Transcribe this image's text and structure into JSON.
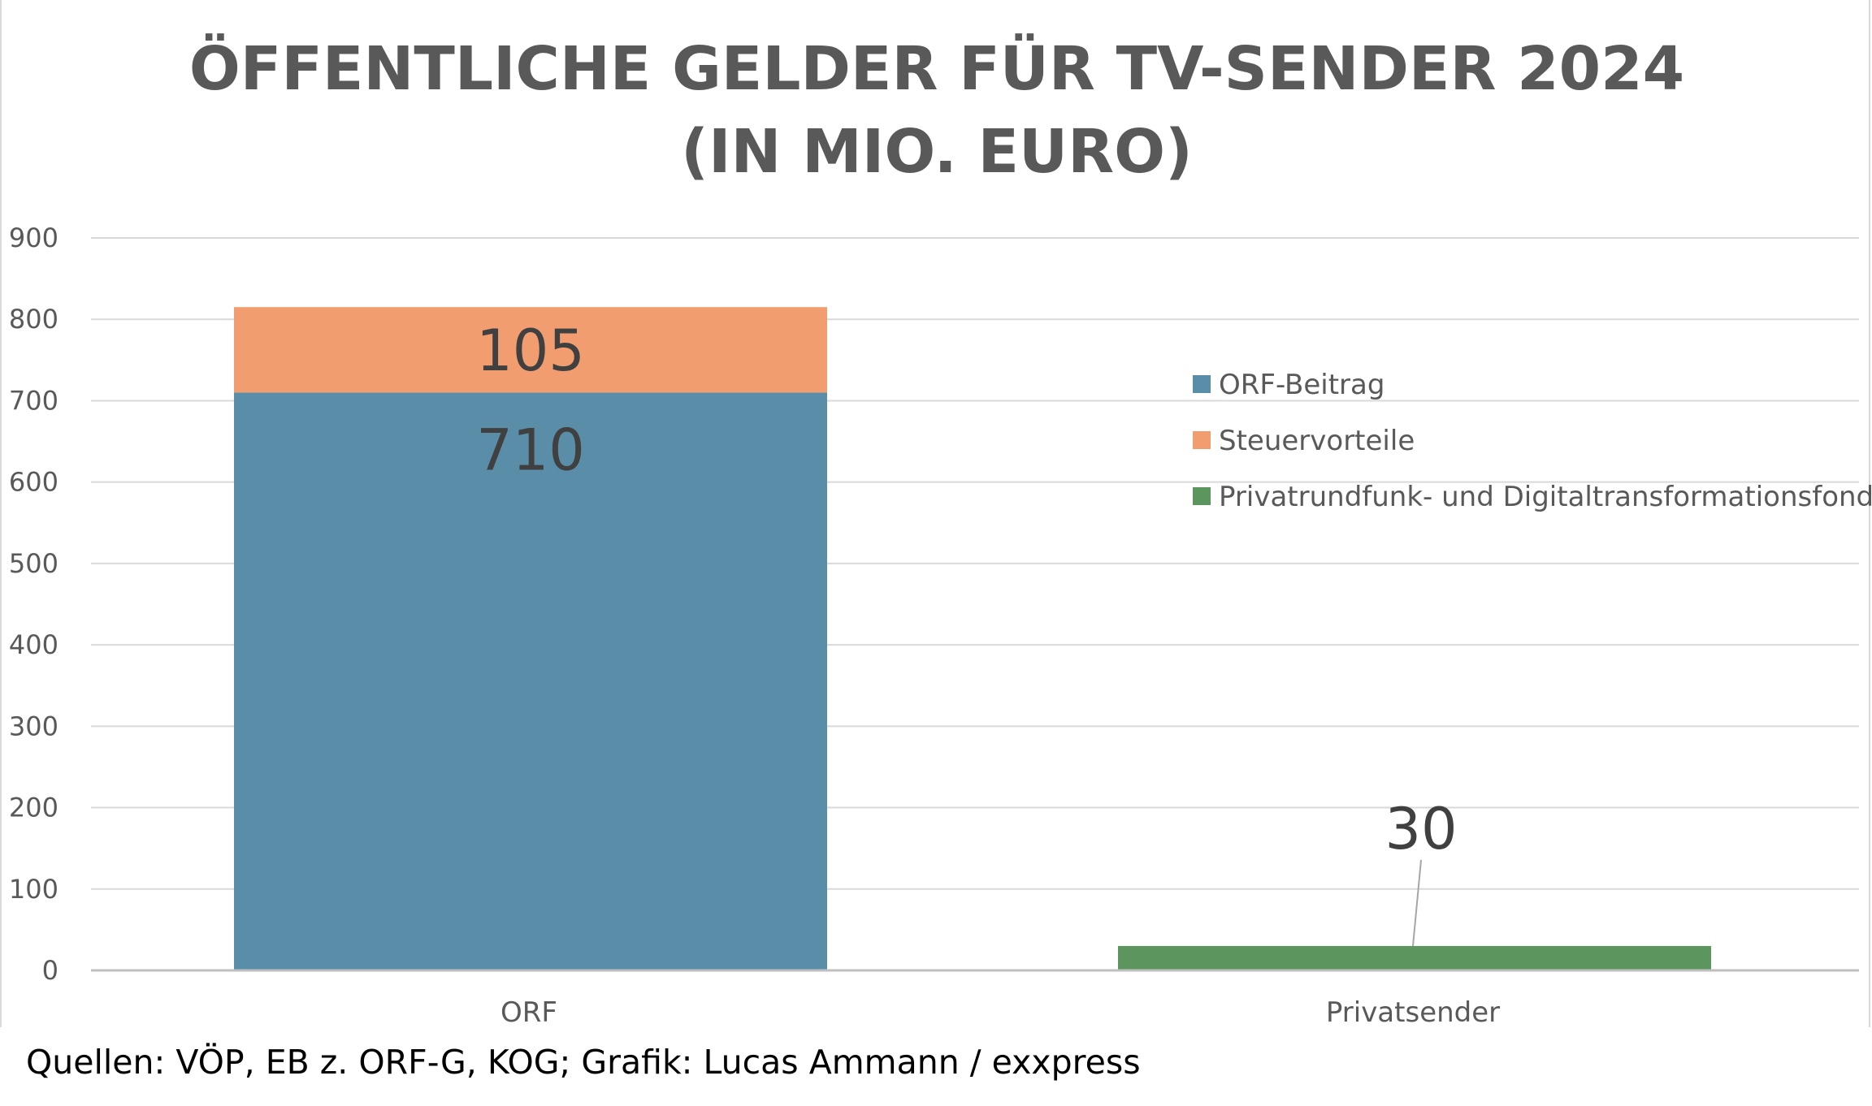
{
  "chart_data": {
    "type": "bar",
    "stacked": true,
    "title_lines": [
      "ÖFFENTLICHE GELDER FÜR TV-SENDER 2024",
      "(IN MIO. EURO)"
    ],
    "categories": [
      "ORF",
      "Privatsender"
    ],
    "series": [
      {
        "name": "ORF-Beitrag",
        "color": "#5a8ea8",
        "values": [
          710,
          0
        ],
        "labels": [
          "710",
          ""
        ]
      },
      {
        "name": "Steuervorteile",
        "color": "#f19d70",
        "values": [
          105,
          0
        ],
        "labels": [
          "105",
          ""
        ]
      },
      {
        "name": "Privatrundfunk- und Digitaltransformationsfonds",
        "color": "#5c955e",
        "values": [
          0,
          30
        ],
        "labels": [
          "",
          "30"
        ]
      }
    ],
    "ylim": [
      0,
      900
    ],
    "yticks": [
      "0",
      "100",
      "200",
      "300",
      "400",
      "500",
      "600",
      "700",
      "800",
      "900"
    ],
    "grid": true,
    "legend_position": "right"
  },
  "source": "Quellen: VÖP, EB z. ORF-G, KOG; Grafik: Lucas Ammann / exxpress"
}
